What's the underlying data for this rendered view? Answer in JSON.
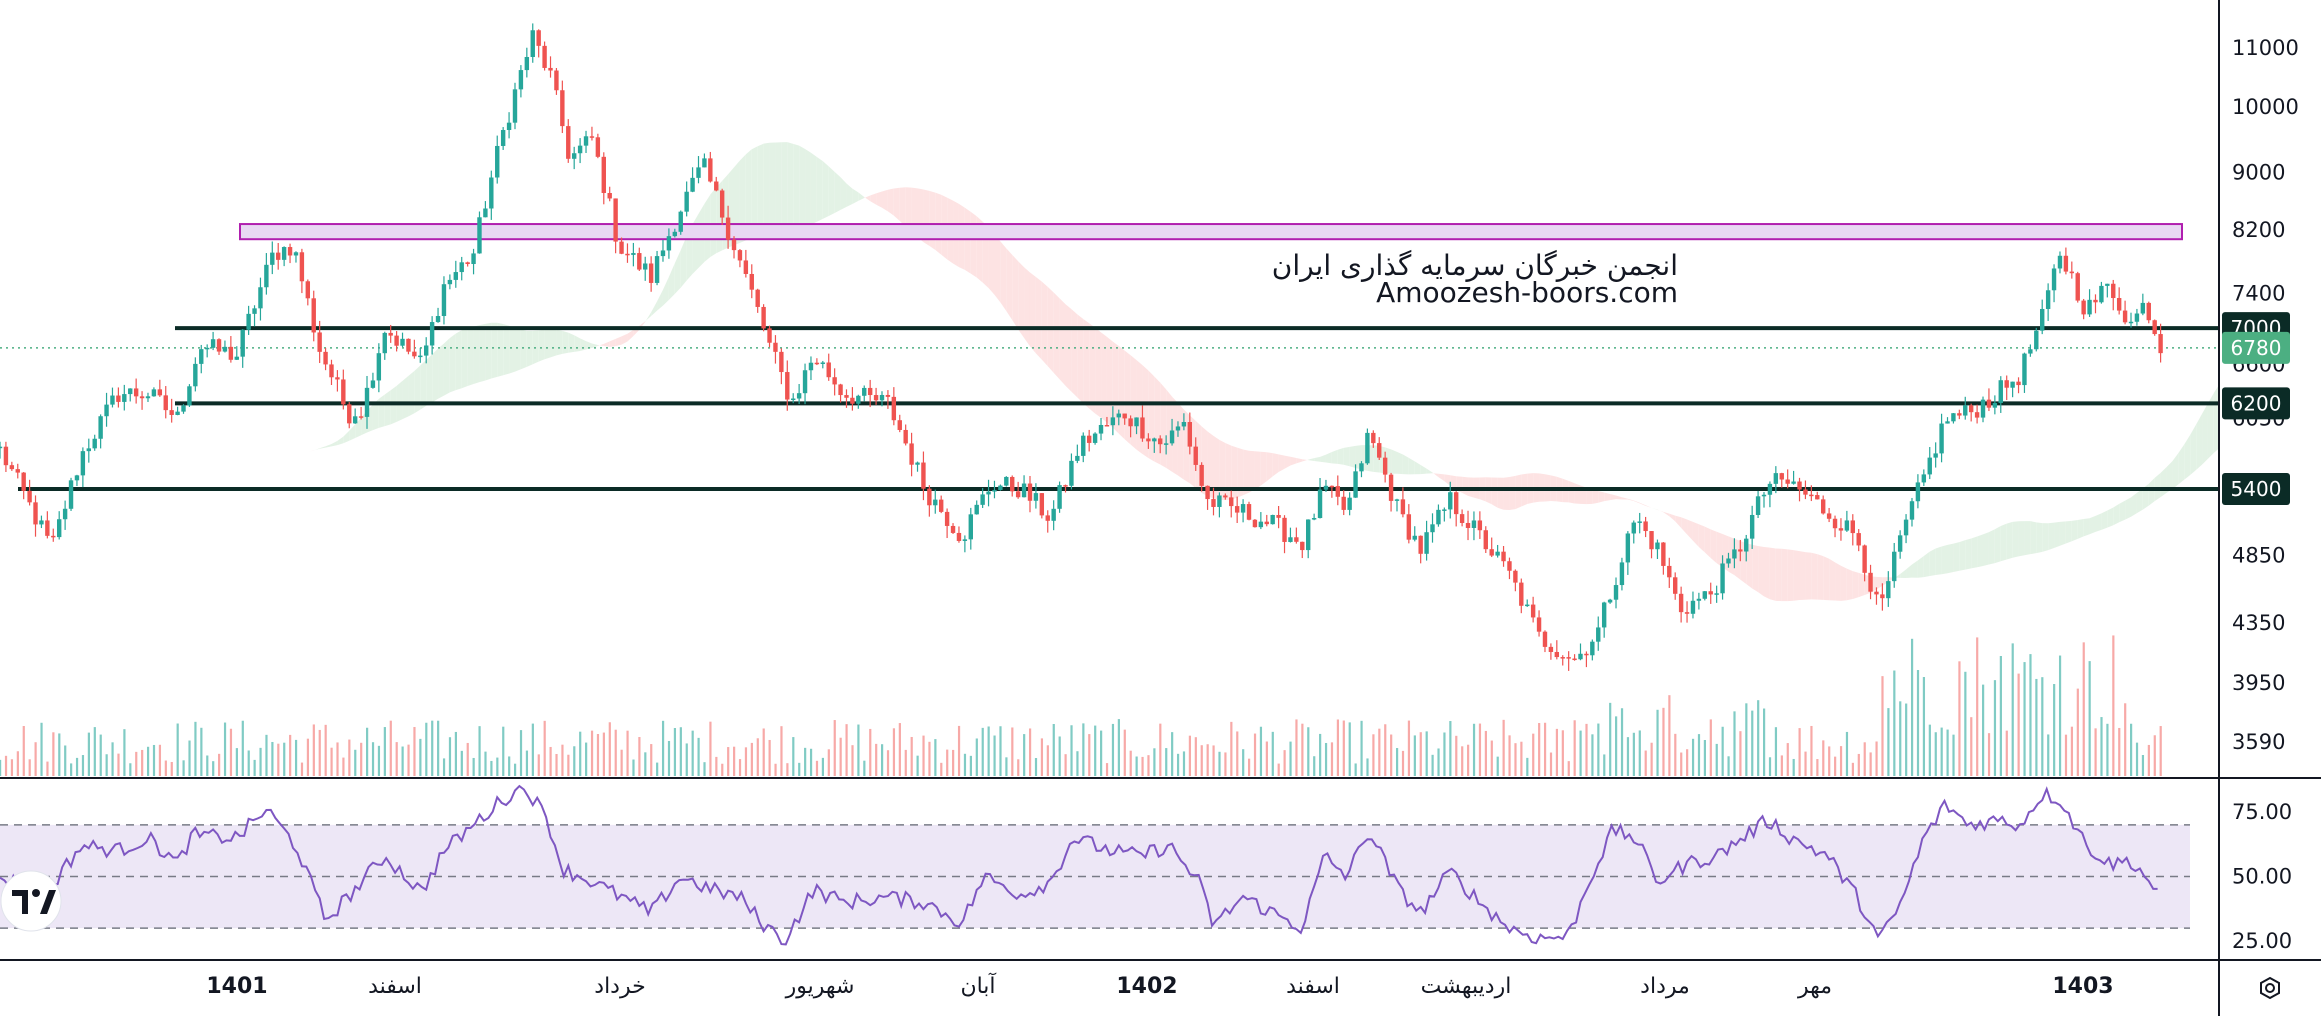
{
  "chart_data": {
    "type": "candlestick",
    "watermark": {
      "line1": "انجمن خبرگان سرمایه گذاری ایران",
      "line2": "Amoozesh-boors.com"
    },
    "price_axis": {
      "ticks": [
        "11000",
        "10000",
        "9000",
        "8200",
        "7400",
        "6600",
        "6050",
        "5400",
        "4850",
        "4350",
        "3950",
        "3590"
      ],
      "scale": "log",
      "ylim": [
        3300,
        11800
      ]
    },
    "rsi_axis": {
      "ticks": [
        "75.00",
        "50.00",
        "25.00"
      ],
      "ylim": [
        17,
        90
      ],
      "band": [
        30,
        70
      ],
      "midline": 50
    },
    "time_axis": {
      "labels": [
        {
          "text": "1401",
          "bold": true
        },
        {
          "text": "اسفند",
          "bold": false
        },
        {
          "text": "خرداد",
          "bold": false
        },
        {
          "text": "شهریور",
          "bold": false
        },
        {
          "text": "آبان",
          "bold": false
        },
        {
          "text": "1402",
          "bold": true
        },
        {
          "text": "اسفند",
          "bold": false
        },
        {
          "text": "اردیبهشت",
          "bold": false
        },
        {
          "text": "مرداد",
          "bold": false
        },
        {
          "text": "مهر",
          "bold": false
        },
        {
          "text": "1403",
          "bold": true
        }
      ]
    },
    "levels": [
      {
        "value": 7000,
        "label": "7000"
      },
      {
        "value": 6200,
        "label": "6200"
      },
      {
        "value": 5400,
        "label": "5400"
      }
    ],
    "last_price": {
      "value": 6780,
      "label": "6780"
    },
    "resistance_zone": {
      "low": 8080,
      "high": 8280
    },
    "price_keypoints": [
      [
        0,
        5750
      ],
      [
        18,
        5300
      ],
      [
        35,
        4900
      ],
      [
        55,
        5700
      ],
      [
        80,
        6300
      ],
      [
        100,
        6300
      ],
      [
        120,
        6050
      ],
      [
        135,
        6800
      ],
      [
        160,
        6700
      ],
      [
        185,
        7900
      ],
      [
        198,
        8000
      ],
      [
        215,
        6800
      ],
      [
        235,
        6100
      ],
      [
        245,
        6150
      ],
      [
        260,
        7000
      ],
      [
        285,
        6600
      ],
      [
        300,
        7500
      ],
      [
        320,
        7900
      ],
      [
        340,
        9600
      ],
      [
        360,
        11200
      ],
      [
        372,
        10500
      ],
      [
        385,
        9200
      ],
      [
        400,
        9500
      ],
      [
        418,
        8000
      ],
      [
        440,
        7600
      ],
      [
        460,
        8500
      ],
      [
        475,
        9100
      ],
      [
        500,
        7800
      ],
      [
        520,
        6800
      ],
      [
        535,
        6200
      ],
      [
        550,
        6700
      ],
      [
        570,
        6300
      ],
      [
        600,
        6200
      ],
      [
        625,
        5400
      ],
      [
        650,
        5000
      ],
      [
        670,
        5450
      ],
      [
        690,
        5400
      ],
      [
        710,
        5150
      ],
      [
        730,
        5800
      ],
      [
        760,
        6100
      ],
      [
        785,
        5800
      ],
      [
        800,
        6000
      ],
      [
        815,
        5300
      ],
      [
        840,
        5200
      ],
      [
        860,
        5100
      ],
      [
        880,
        4950
      ],
      [
        895,
        5400
      ],
      [
        910,
        5200
      ],
      [
        925,
        5900
      ],
      [
        945,
        5200
      ],
      [
        960,
        4900
      ],
      [
        980,
        5300
      ],
      [
        1000,
        5000
      ],
      [
        1020,
        4700
      ],
      [
        1040,
        4250
      ],
      [
        1065,
        4100
      ],
      [
        1080,
        4300
      ],
      [
        1092,
        4700
      ],
      [
        1105,
        5150
      ],
      [
        1120,
        4900
      ],
      [
        1135,
        4450
      ],
      [
        1155,
        4550
      ],
      [
        1175,
        4900
      ],
      [
        1195,
        5450
      ],
      [
        1210,
        5450
      ],
      [
        1235,
        5200
      ],
      [
        1255,
        5000
      ],
      [
        1270,
        4400
      ],
      [
        1285,
        5000
      ],
      [
        1300,
        5500
      ],
      [
        1315,
        6050
      ],
      [
        1330,
        6100
      ],
      [
        1350,
        6300
      ],
      [
        1365,
        6500
      ],
      [
        1380,
        7100
      ],
      [
        1392,
        7900
      ],
      [
        1410,
        7200
      ],
      [
        1425,
        7500
      ],
      [
        1440,
        7050
      ],
      [
        1450,
        7300
      ],
      [
        1460,
        6780
      ]
    ],
    "rsi_keypoints": [
      [
        0,
        50
      ],
      [
        30,
        43
      ],
      [
        55,
        62
      ],
      [
        80,
        60
      ],
      [
        100,
        65
      ],
      [
        120,
        55
      ],
      [
        130,
        66
      ],
      [
        160,
        65
      ],
      [
        180,
        76
      ],
      [
        200,
        62
      ],
      [
        220,
        33
      ],
      [
        240,
        45
      ],
      [
        260,
        58
      ],
      [
        285,
        44
      ],
      [
        300,
        60
      ],
      [
        320,
        70
      ],
      [
        340,
        80
      ],
      [
        355,
        85
      ],
      [
        370,
        72
      ],
      [
        380,
        53
      ],
      [
        400,
        48
      ],
      [
        420,
        42
      ],
      [
        440,
        36
      ],
      [
        460,
        50
      ],
      [
        480,
        45
      ],
      [
        500,
        42
      ],
      [
        515,
        32
      ],
      [
        530,
        25
      ],
      [
        550,
        45
      ],
      [
        570,
        40
      ],
      [
        600,
        42
      ],
      [
        625,
        40
      ],
      [
        650,
        32
      ],
      [
        665,
        50
      ],
      [
        690,
        43
      ],
      [
        710,
        48
      ],
      [
        725,
        65
      ],
      [
        750,
        60
      ],
      [
        770,
        58
      ],
      [
        790,
        62
      ],
      [
        810,
        48
      ],
      [
        820,
        31
      ],
      [
        840,
        42
      ],
      [
        860,
        36
      ],
      [
        880,
        30
      ],
      [
        895,
        58
      ],
      [
        910,
        50
      ],
      [
        925,
        68
      ],
      [
        945,
        45
      ],
      [
        960,
        36
      ],
      [
        980,
        52
      ],
      [
        1000,
        40
      ],
      [
        1020,
        30
      ],
      [
        1040,
        26
      ],
      [
        1060,
        27
      ],
      [
        1075,
        50
      ],
      [
        1090,
        68
      ],
      [
        1105,
        65
      ],
      [
        1120,
        48
      ],
      [
        1140,
        55
      ],
      [
        1160,
        58
      ],
      [
        1175,
        64
      ],
      [
        1195,
        72
      ],
      [
        1210,
        65
      ],
      [
        1235,
        58
      ],
      [
        1255,
        42
      ],
      [
        1270,
        25
      ],
      [
        1285,
        40
      ],
      [
        1300,
        65
      ],
      [
        1315,
        78
      ],
      [
        1330,
        70
      ],
      [
        1350,
        72
      ],
      [
        1365,
        70
      ],
      [
        1380,
        82
      ],
      [
        1392,
        80
      ],
      [
        1410,
        62
      ],
      [
        1425,
        55
      ],
      [
        1440,
        56
      ],
      [
        1450,
        50
      ],
      [
        1460,
        42
      ]
    ],
    "grid": false,
    "legend": "none",
    "colors": {
      "up": "#26a69a",
      "down": "#ef5350",
      "volume_up": "#80cbc4",
      "volume_down": "#f7a9a7",
      "cloud_up": "#e3f2e5",
      "cloud_down": "#fde3e3",
      "rsi_line": "#7e57c2",
      "rsi_band": "#ede7f6",
      "level_line": "#0b2b26",
      "level_badge": "#0b2b26",
      "last_price_badge": "#4caf82",
      "zone_fill": "#e8d8f3",
      "zone_stroke": "#b01faf",
      "axis_line": "#131722"
    }
  },
  "logo": {
    "icon": "tradingview-logo-icon"
  },
  "settings": {
    "icon": "settings-hexagon-icon"
  }
}
